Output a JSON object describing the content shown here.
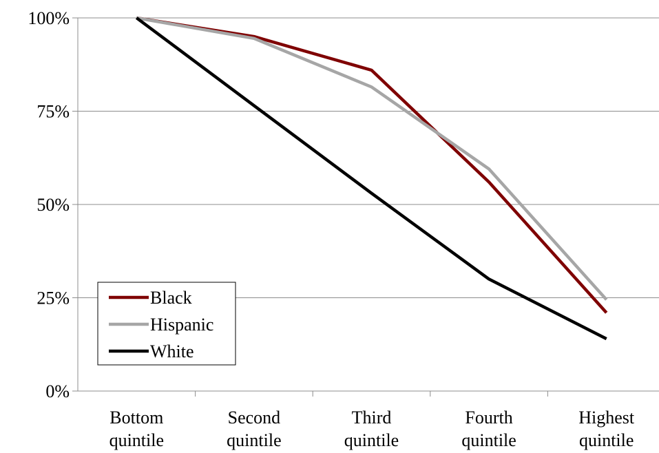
{
  "chart_data": {
    "type": "line",
    "categories": [
      [
        "Bottom",
        "quintile"
      ],
      [
        "Second",
        "quintile"
      ],
      [
        "Third",
        "quintile"
      ],
      [
        "Fourth",
        "quintile"
      ],
      [
        "Highest",
        "quintile"
      ]
    ],
    "series": [
      {
        "name": "Black",
        "color": "#7f0000",
        "values": [
          100,
          95,
          86,
          56,
          21
        ]
      },
      {
        "name": "Hispanic",
        "color": "#a6a6a6",
        "values": [
          100,
          94.5,
          81.5,
          59.5,
          24.5
        ]
      },
      {
        "name": "White",
        "color": "#000000",
        "values": [
          100,
          76.5,
          53,
          30,
          14
        ]
      }
    ],
    "yticks": [
      "0%",
      "25%",
      "50%",
      "75%",
      "100%"
    ],
    "ylim": [
      0,
      100
    ],
    "grid": true,
    "legend_position": "bottom-left"
  }
}
